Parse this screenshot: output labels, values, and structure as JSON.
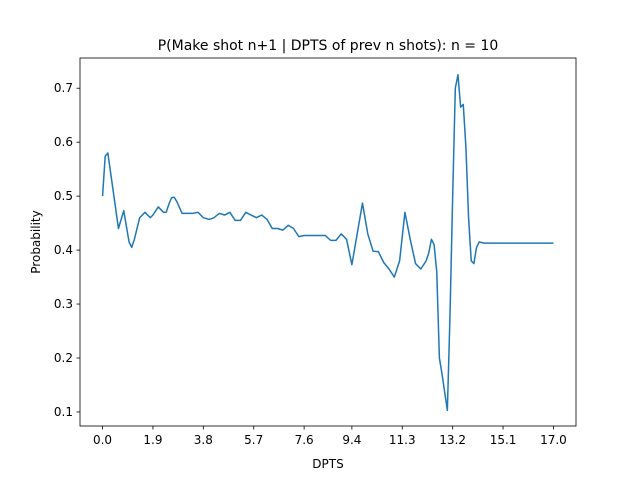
{
  "chart_data": {
    "type": "line",
    "title": "P(Make shot n+1 | DPTS of prev n shots): n = 10",
    "xlabel": "DPTS",
    "ylabel": "Probability",
    "xlim": [
      -0.85,
      17.85
    ],
    "ylim": [
      0.074,
      0.756
    ],
    "x_tick_labels": [
      "0.0",
      "1.9",
      "3.8",
      "5.7",
      "7.6",
      "9.4",
      "11.3",
      "13.2",
      "15.1",
      "17.0"
    ],
    "y_tick_labels": [
      "0.1",
      "0.2",
      "0.3",
      "0.4",
      "0.5",
      "0.6",
      "0.7"
    ],
    "y_ticks": [
      0.1,
      0.2,
      0.3,
      0.4,
      0.5,
      0.6,
      0.7
    ],
    "grid": false,
    "line_color": "#1f77b4",
    "series": [
      {
        "name": "",
        "x": [
          0.0,
          0.1,
          0.2,
          0.4,
          0.6,
          0.8,
          1.0,
          1.1,
          1.2,
          1.4,
          1.6,
          1.8,
          1.9,
          2.1,
          2.3,
          2.4,
          2.5,
          2.6,
          2.7,
          2.8,
          3.0,
          3.1,
          3.2,
          3.4,
          3.6,
          3.8,
          4.0,
          4.1,
          4.2,
          4.4,
          4.6,
          4.8,
          5.0,
          5.2,
          5.4,
          5.6,
          5.8,
          6.0,
          6.2,
          6.4,
          6.6,
          6.8,
          7.0,
          7.2,
          7.4,
          7.6,
          7.8,
          8.0,
          8.2,
          8.4,
          8.6,
          8.8,
          9.0,
          9.2,
          9.4,
          9.6,
          9.8,
          10.0,
          10.2,
          10.4,
          10.6,
          10.8,
          11.0,
          11.2,
          11.4,
          11.6,
          11.8,
          12.0,
          12.2,
          12.3,
          12.4,
          12.5,
          12.6,
          12.7,
          12.8,
          13.0,
          13.1,
          13.2,
          13.3,
          13.4,
          13.5,
          13.6,
          13.7,
          13.8,
          13.9,
          14.0,
          14.1,
          14.2,
          14.4,
          15.0,
          16.0,
          17.0
        ],
        "y": [
          0.5,
          0.574,
          0.58,
          0.51,
          0.44,
          0.473,
          0.415,
          0.405,
          0.42,
          0.46,
          0.47,
          0.46,
          0.465,
          0.48,
          0.47,
          0.47,
          0.485,
          0.497,
          0.498,
          0.49,
          0.468,
          0.468,
          0.468,
          0.468,
          0.47,
          0.46,
          0.457,
          0.458,
          0.46,
          0.468,
          0.465,
          0.47,
          0.455,
          0.455,
          0.47,
          0.465,
          0.46,
          0.465,
          0.457,
          0.44,
          0.44,
          0.437,
          0.446,
          0.44,
          0.425,
          0.427,
          0.427,
          0.427,
          0.427,
          0.427,
          0.418,
          0.418,
          0.43,
          0.42,
          0.373,
          0.43,
          0.487,
          0.43,
          0.398,
          0.397,
          0.377,
          0.365,
          0.35,
          0.38,
          0.47,
          0.42,
          0.375,
          0.365,
          0.38,
          0.395,
          0.42,
          0.41,
          0.36,
          0.2,
          0.17,
          0.103,
          0.28,
          0.5,
          0.7,
          0.725,
          0.665,
          0.67,
          0.59,
          0.46,
          0.38,
          0.375,
          0.405,
          0.415,
          0.413,
          0.413,
          0.413,
          0.413
        ]
      }
    ]
  }
}
